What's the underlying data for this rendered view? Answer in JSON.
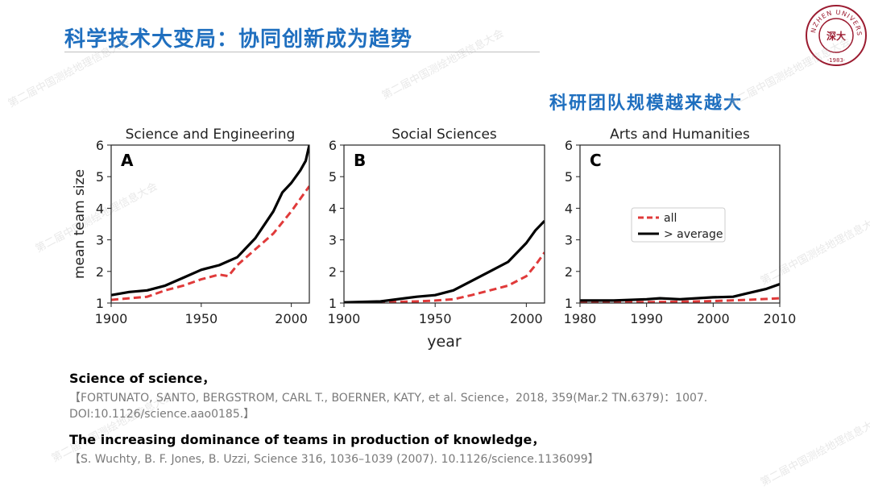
{
  "slide": {
    "title": "科学技术大变局：协同创新成为趋势",
    "subtitle": "科研团队规模越来越大",
    "watermark": "第二届中国测绘地理信息大会",
    "logo": {
      "ring_text": "SHENZHEN UNIVERSITY",
      "year": "·1983·",
      "center_text": "深大",
      "color": "#9b1b30"
    },
    "accent_color": "#1f6fbf"
  },
  "chart_data": [
    {
      "type": "line",
      "panel_letter": "A",
      "title": "Science and Engineering",
      "xlabel": "",
      "ylabel": "mean team size",
      "xlim": [
        1900,
        2010
      ],
      "ylim": [
        1,
        6
      ],
      "xticks": [
        1900,
        1950,
        2000
      ],
      "yticks": [
        1,
        2,
        3,
        4,
        5,
        6
      ],
      "series": [
        {
          "name": "all",
          "style": "dashed",
          "color": "#e03a3a",
          "x": [
            1900,
            1910,
            1920,
            1930,
            1940,
            1950,
            1960,
            1965,
            1970,
            1980,
            1990,
            2000,
            2005,
            2010
          ],
          "y": [
            1.1,
            1.15,
            1.2,
            1.4,
            1.55,
            1.75,
            1.9,
            1.85,
            2.2,
            2.7,
            3.2,
            3.9,
            4.3,
            4.7
          ]
        },
        {
          "name": "> average",
          "style": "solid",
          "color": "#000000",
          "x": [
            1900,
            1910,
            1920,
            1930,
            1940,
            1950,
            1960,
            1970,
            1980,
            1990,
            1995,
            2000,
            2005,
            2008,
            2010
          ],
          "y": [
            1.25,
            1.35,
            1.4,
            1.55,
            1.8,
            2.05,
            2.2,
            2.45,
            3.05,
            3.9,
            4.5,
            4.8,
            5.2,
            5.5,
            6.0
          ]
        }
      ]
    },
    {
      "type": "line",
      "panel_letter": "B",
      "title": "Social Sciences",
      "xlabel": "year",
      "ylabel": "",
      "xlim": [
        1900,
        2010
      ],
      "ylim": [
        1,
        6
      ],
      "xticks": [
        1900,
        1950,
        2000
      ],
      "yticks": [
        1,
        2,
        3,
        4,
        5,
        6
      ],
      "series": [
        {
          "name": "all",
          "style": "dashed",
          "color": "#e03a3a",
          "x": [
            1900,
            1920,
            1940,
            1950,
            1960,
            1970,
            1980,
            1990,
            2000,
            2005,
            2010
          ],
          "y": [
            1.0,
            1.02,
            1.05,
            1.08,
            1.12,
            1.25,
            1.4,
            1.55,
            1.85,
            2.2,
            2.6
          ]
        },
        {
          "name": "> average",
          "style": "solid",
          "color": "#000000",
          "x": [
            1900,
            1920,
            1940,
            1950,
            1960,
            1970,
            1980,
            1990,
            2000,
            2005,
            2010
          ],
          "y": [
            1.02,
            1.05,
            1.2,
            1.25,
            1.4,
            1.7,
            2.0,
            2.3,
            2.9,
            3.3,
            3.6
          ]
        }
      ]
    },
    {
      "type": "line",
      "panel_letter": "C",
      "title": "Arts and Humanities",
      "xlabel": "",
      "ylabel": "",
      "xlim": [
        1980,
        2010
      ],
      "ylim": [
        1,
        6
      ],
      "xticks": [
        1980,
        1990,
        2000,
        2010
      ],
      "yticks": [
        1,
        2,
        3,
        4,
        5,
        6
      ],
      "legend": {
        "placement": "center-right",
        "entries": [
          "all",
          "> average"
        ]
      },
      "series": [
        {
          "name": "all",
          "style": "dashed",
          "color": "#e03a3a",
          "x": [
            1980,
            1985,
            1990,
            1995,
            2000,
            2005,
            2010
          ],
          "y": [
            1.02,
            1.02,
            1.03,
            1.04,
            1.06,
            1.1,
            1.15
          ]
        },
        {
          "name": "> average",
          "style": "solid",
          "color": "#000000",
          "x": [
            1980,
            1985,
            1990,
            1992,
            1995,
            2000,
            2003,
            2005,
            2008,
            2010
          ],
          "y": [
            1.08,
            1.08,
            1.12,
            1.15,
            1.12,
            1.18,
            1.2,
            1.3,
            1.45,
            1.6
          ]
        }
      ]
    }
  ],
  "references": [
    {
      "title": "Science of science，",
      "citation": "【FORTUNATO, SANTO, BERGSTROM, CARL T., BOERNER, KATY, et al. Science，2018, 359(Mar.2 TN.6379)：1007. DOI:10.1126/science.aao0185.】"
    },
    {
      "title": "The increasing dominance of teams in production of knowledge，",
      "citation": "【S. Wuchty, B. F. Jones, B. Uzzi, Science 316, 1036–1039 (2007). 10.1126/science.1136099】"
    }
  ]
}
